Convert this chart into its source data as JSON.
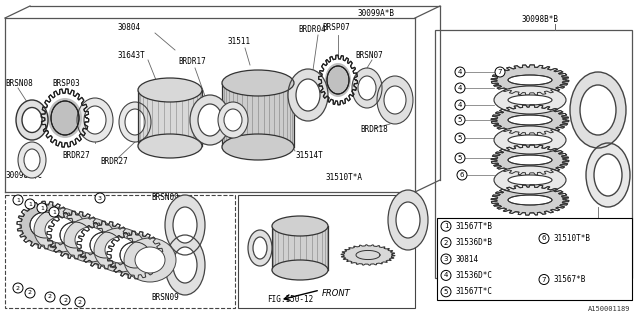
{
  "bg_color": "#ffffff",
  "dc": "#000000",
  "lc": "#666666",
  "watermark": "A150001189",
  "legend_items": [
    {
      "num": "1",
      "text": "31567T*B",
      "col": 0
    },
    {
      "num": "2",
      "text": "31536D*B",
      "col": 0
    },
    {
      "num": "3",
      "text": "30814",
      "col": 0
    },
    {
      "num": "4",
      "text": "31536D*C",
      "col": 0
    },
    {
      "num": "5",
      "text": "31567T*C",
      "col": 0
    },
    {
      "num": "6",
      "text": "31510T*B",
      "col": 1
    },
    {
      "num": "7",
      "text": "31567*B",
      "col": 1
    }
  ]
}
